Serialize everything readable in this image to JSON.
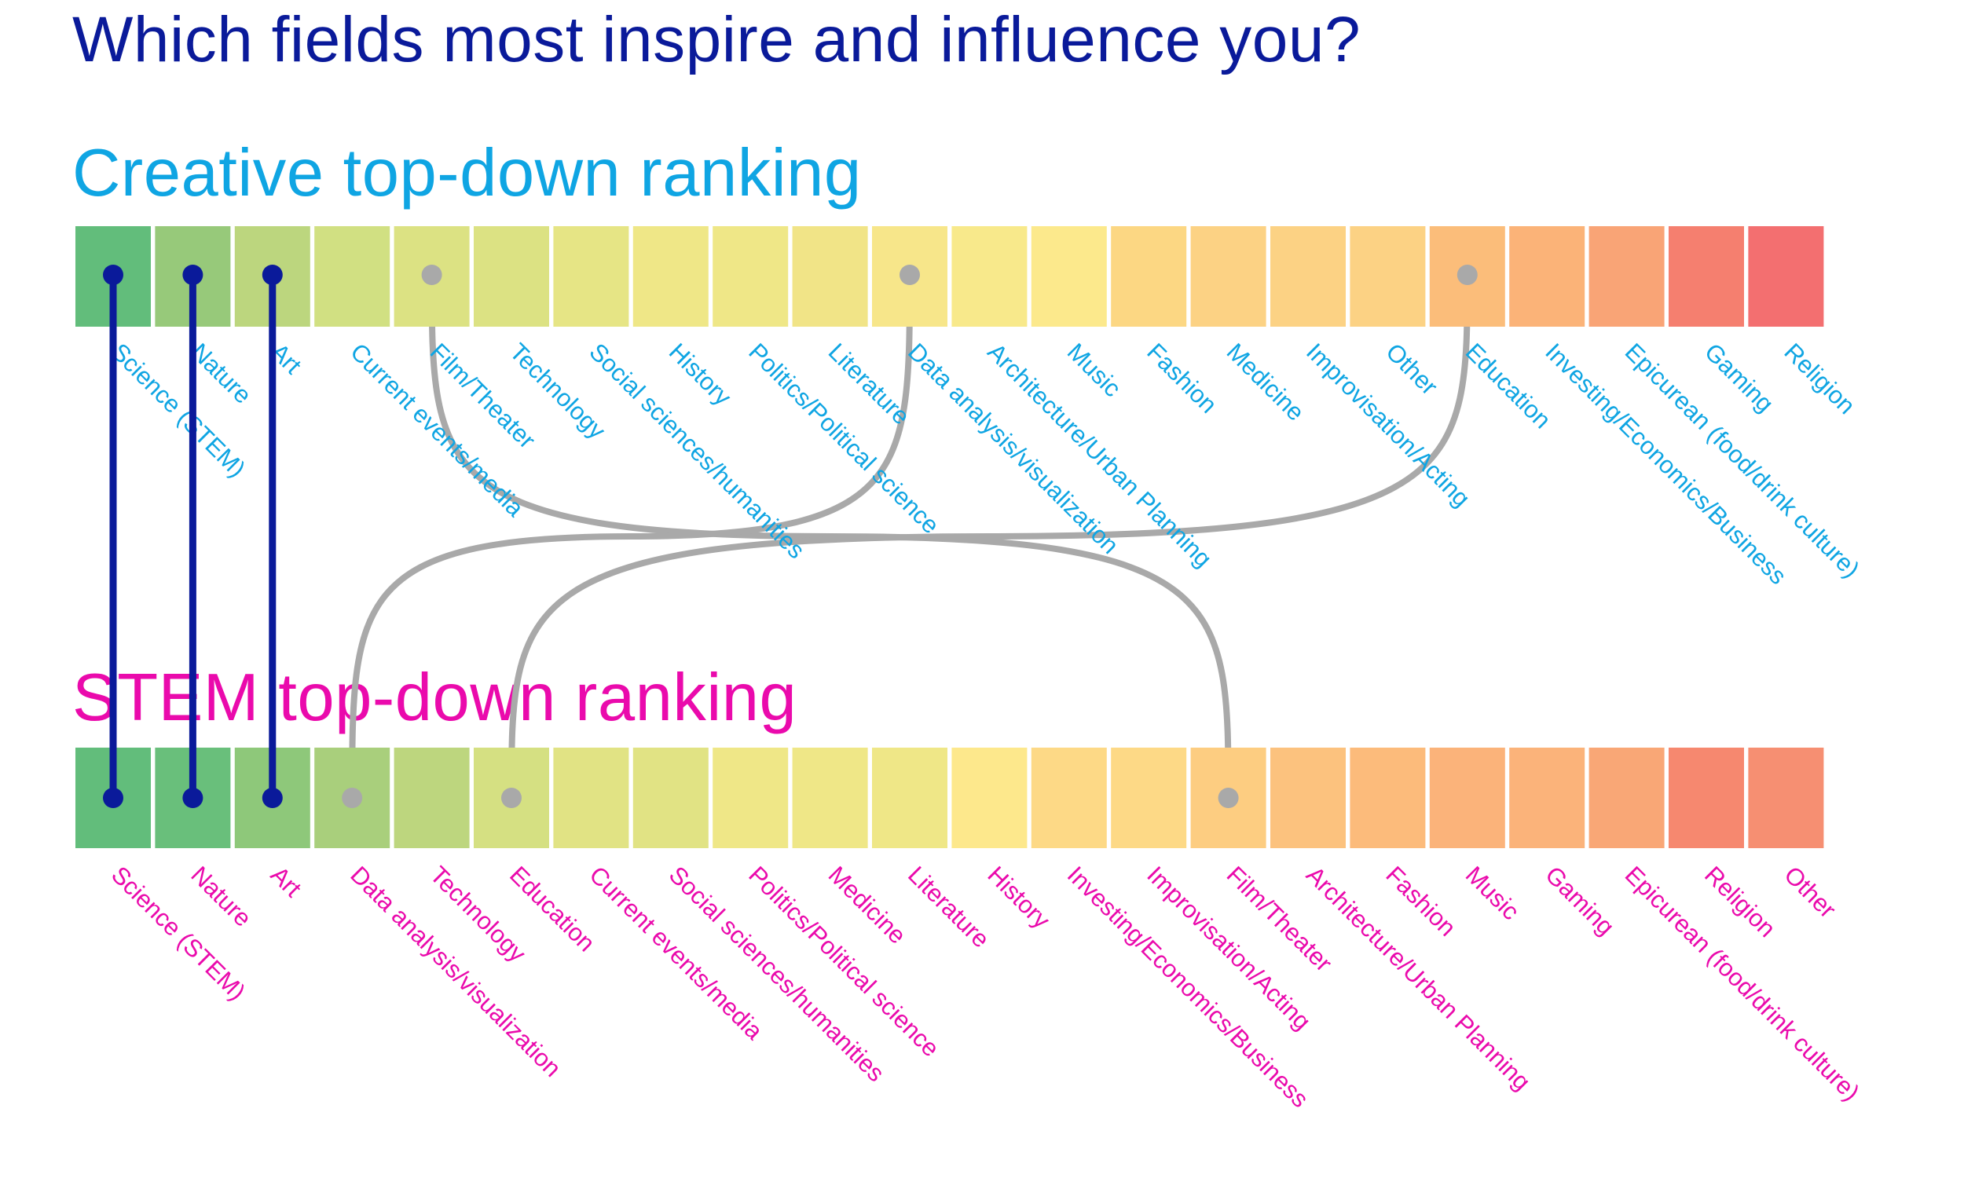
{
  "title": "Which fields most inspire and influence you?",
  "colors": {
    "title": "#0a1a9a",
    "creative": "#0fa5e3",
    "stem": "#ea0aac",
    "top3_connector": "#0a1a9a",
    "other_connector": "#a9a9a9"
  },
  "chart_data": {
    "type": "slope",
    "series": [
      {
        "name": "Creative top-down ranking",
        "categories": [
          "Science (STEM)",
          "Nature",
          "Art",
          "Current events/media",
          "Film/Theater",
          "Technology",
          "Social sciences/humanities",
          "History",
          "Politics/Political science",
          "Literature",
          "Data analysis/visualization",
          "Architecture/Urban Planning",
          "Music",
          "Fashion",
          "Medicine",
          "Improvisation/Acting",
          "Other",
          "Education",
          "Investing/Economics/Business",
          "Epicurean (food/drink culture)",
          "Gaming",
          "Religion"
        ],
        "cell_colors": [
          "#62bd7b",
          "#97c97a",
          "#bcd67e",
          "#d1e082",
          "#dce283",
          "#dce283",
          "#e6e585",
          "#efe787",
          "#efe787",
          "#f1e487",
          "#f7e68a",
          "#f8e98b",
          "#fce98c",
          "#fcd783",
          "#fcd284",
          "#fcd284",
          "#fcd284",
          "#fbbd7a",
          "#fbb378",
          "#f9a476",
          "#f57f6f",
          "#f36f70"
        ]
      },
      {
        "name": "STEM top-down ranking",
        "categories": [
          "Science (STEM)",
          "Nature",
          "Art",
          "Data analysis/visualization",
          "Technology",
          "Education",
          "Current events/media",
          "Social sciences/humanities",
          "Politics/Political science",
          "Medicine",
          "Literature",
          "History",
          "Investing/Economics/Business",
          "Improvisation/Acting",
          "Film/Theater",
          "Architecture/Urban Planning",
          "Fashion",
          "Music",
          "Gaming",
          "Epicurean (food/drink culture)",
          "Religion",
          "Other"
        ],
        "cell_colors": [
          "#62bd7b",
          "#69bf7b",
          "#8ec87a",
          "#a9cf7c",
          "#bdd67e",
          "#d5e082",
          "#e1e384",
          "#e1e384",
          "#efe787",
          "#efe787",
          "#efe787",
          "#fde88c",
          "#fdd986",
          "#fdd986",
          "#fdcd81",
          "#fcc27e",
          "#fcbb7b",
          "#fbb37a",
          "#fbb37a",
          "#f9a776",
          "#f6886f",
          "#f68f72"
        ]
      }
    ],
    "connections": [
      {
        "category": "Science (STEM)",
        "creative_rank": 1,
        "stem_rank": 1,
        "highlight": true
      },
      {
        "category": "Nature",
        "creative_rank": 2,
        "stem_rank": 2,
        "highlight": true
      },
      {
        "category": "Art",
        "creative_rank": 3,
        "stem_rank": 3,
        "highlight": true
      },
      {
        "category": "Film/Theater",
        "creative_rank": 5,
        "stem_rank": 15,
        "highlight": false
      },
      {
        "category": "Data analysis/visualization",
        "creative_rank": 11,
        "stem_rank": 4,
        "highlight": false
      },
      {
        "category": "Education",
        "creative_rank": 18,
        "stem_rank": 6,
        "highlight": false
      }
    ]
  }
}
